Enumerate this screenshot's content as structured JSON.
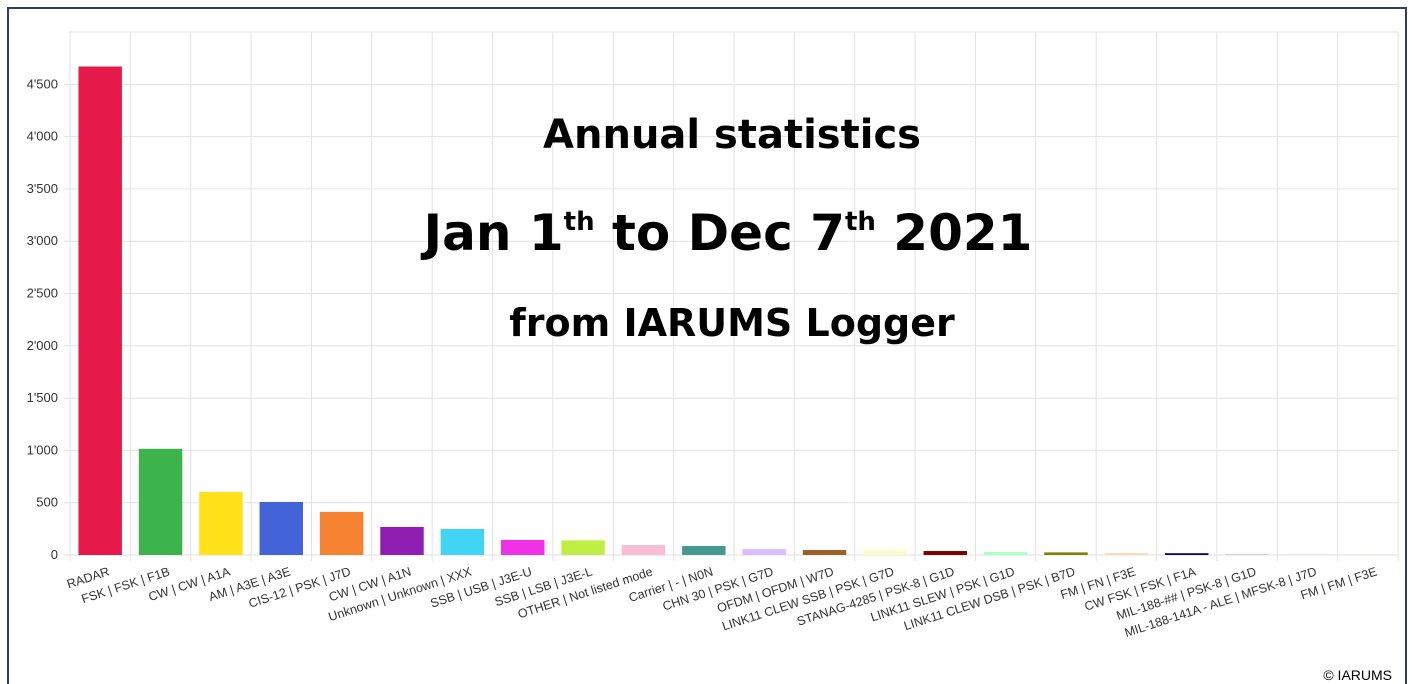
{
  "chart_data": {
    "type": "bar",
    "title": "Annual statistics",
    "subtitle_parts": [
      "Jan 1",
      "th",
      " to Dec 7",
      "th",
      " 2021"
    ],
    "source_line": "from IARUMS Logger",
    "copyright": "© IARUMS",
    "categories": [
      "RADAR",
      "FSK | FSK | F1B",
      "CW | CW | A1A",
      "AM | A3E | A3E",
      "CIS-12 | PSK | J7D",
      "CW | CW | A1N",
      "Unknown | Unknown | XXX",
      "SSB | USB | J3E-U",
      "SSB | LSB | J3E-L",
      "OTHER | Not listed mode",
      "Carrier | - | N0N",
      "CHN 30 | PSK | G7D",
      "OFDM | OFDM | W7D",
      "LINK11 CLEW SSB | PSK | G7D",
      "STANAG-4285 | PSK-8 | G1D",
      "LINK11 SLEW | PSK | G1D",
      "LINK11 CLEW DSB | PSK | B7D",
      "FM | FN | F3E",
      "CW FSK | FSK | F1A",
      "MIL-188-## | PSK-8 | G1D",
      "MIL-188-141A - ALE | MFSK-8 | J7D",
      "FM | FM | F3E"
    ],
    "values": [
      4670,
      1015,
      603,
      507,
      412,
      268,
      249,
      144,
      140,
      96,
      86,
      57,
      48,
      45,
      38,
      28,
      25,
      18,
      17,
      5,
      4,
      3
    ],
    "colors": [
      "#e6194b",
      "#3cb44b",
      "#ffe119",
      "#4363d8",
      "#f58231",
      "#911eb4",
      "#42d4f4",
      "#f032e6",
      "#bfef45",
      "#fabed4",
      "#469990",
      "#dcbeff",
      "#9a6324",
      "#fffac8",
      "#800000",
      "#aaffc3",
      "#808000",
      "#ffd8b1",
      "#000075",
      "#a9a9a9",
      "#d0d0d0",
      "#e0e0c0"
    ],
    "ylim": [
      0,
      5000
    ],
    "yticks": [
      0,
      500,
      {
        "value": 1000,
        "label": "1'000"
      },
      {
        "value": 1500,
        "label": "1'500"
      },
      {
        "value": 2000,
        "label": "2'000"
      },
      {
        "value": 2500,
        "label": "2'500"
      },
      {
        "value": 3000,
        "label": "3'000"
      },
      {
        "value": 3500,
        "label": "3'500"
      },
      {
        "value": 4000,
        "label": "4'000"
      },
      {
        "value": 4500,
        "label": "4'500"
      }
    ],
    "grid": true
  }
}
